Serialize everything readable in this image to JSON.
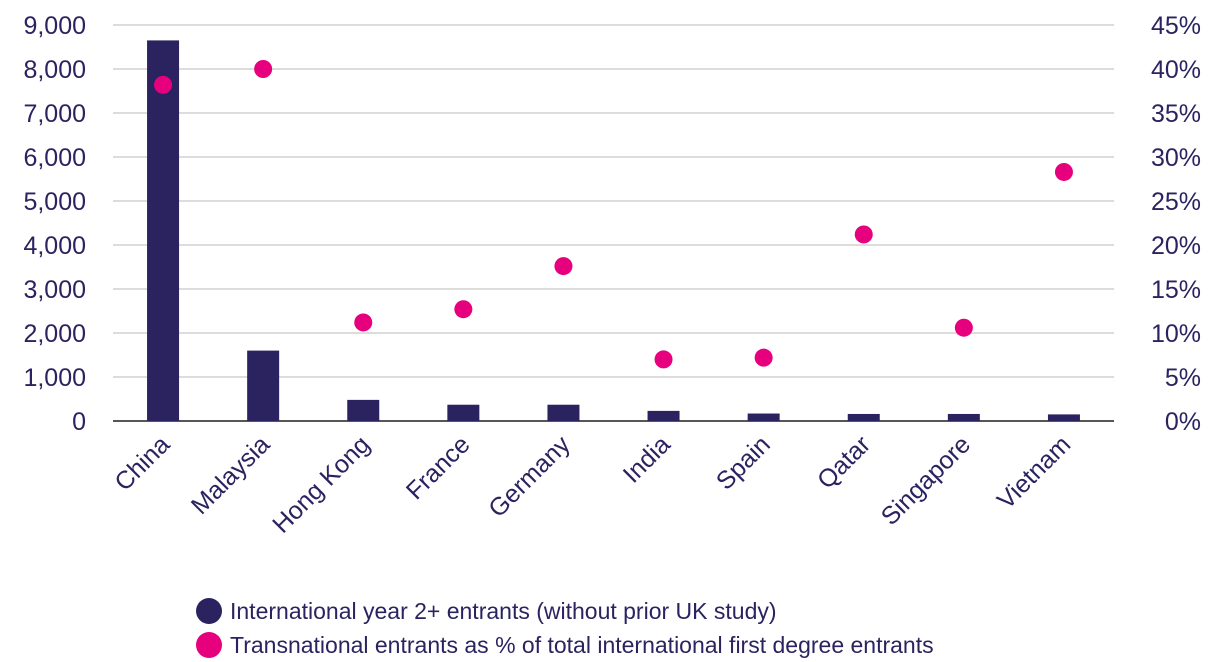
{
  "colors": {
    "bars": "#2a2360",
    "points": "#e6007e",
    "grid": "#c8c8c8",
    "text": "#2a2360"
  },
  "chart_data": {
    "type": "bar",
    "categories": [
      "China",
      "Malaysia",
      "Hong Kong",
      "France",
      "Germany",
      "India",
      "Spain",
      "Qatar",
      "Singapore",
      "Vietnam"
    ],
    "series": [
      {
        "name": "International year 2+ entrants (without prior UK study)",
        "type": "bar",
        "axis": "left",
        "values": [
          8650,
          1600,
          480,
          370,
          370,
          230,
          170,
          160,
          160,
          150
        ]
      },
      {
        "name": "Transnational entrants as % of total international first degree entrants",
        "type": "scatter",
        "axis": "right",
        "values": [
          38.2,
          40.0,
          11.2,
          12.7,
          17.6,
          7.0,
          7.2,
          21.2,
          10.6,
          28.3
        ]
      }
    ],
    "y_left": {
      "min": 0,
      "max": 9000,
      "ticks": [
        "0",
        "1,000",
        "2,000",
        "3,000",
        "4,000",
        "5,000",
        "6,000",
        "7,000",
        "8,000",
        "9,000"
      ]
    },
    "y_right": {
      "min": 0,
      "max": 45,
      "ticks": [
        "0%",
        "5%",
        "10%",
        "15%",
        "20%",
        "25%",
        "30%",
        "35%",
        "40%",
        "45%"
      ]
    },
    "grid": true,
    "legend_position": "bottom"
  }
}
